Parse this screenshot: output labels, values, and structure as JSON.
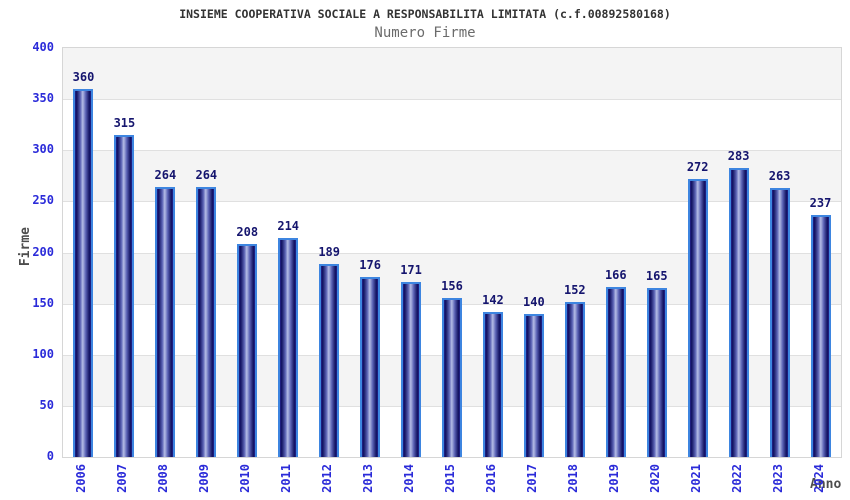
{
  "header": {
    "title": "INSIEME COOPERATIVA SOCIALE A RESPONSABILITA LIMITATA (c.f.00892580168)",
    "subtitle": "Numero Firme"
  },
  "chart_data": {
    "type": "bar",
    "title": "INSIEME COOPERATIVA SOCIALE A RESPONSABILITA LIMITATA (c.f.00892580168)",
    "subtitle": "Numero Firme",
    "xlabel": "Anno",
    "ylabel": "Firme",
    "categories": [
      "2006",
      "2007",
      "2008",
      "2009",
      "2010",
      "2011",
      "2012",
      "2013",
      "2014",
      "2015",
      "2016",
      "2017",
      "2018",
      "2019",
      "2020",
      "2021",
      "2022",
      "2023",
      "2024"
    ],
    "values": [
      360,
      315,
      264,
      264,
      208,
      214,
      189,
      176,
      171,
      156,
      142,
      140,
      152,
      166,
      165,
      272,
      283,
      263,
      237
    ],
    "ylim": [
      0,
      400
    ],
    "ytick_step": 50,
    "grid": "horizontal bands alternating",
    "legend": "none",
    "colors": {
      "bar_border": "#3d85e0",
      "bar_dark": "#10105e",
      "bar_light": "#b4bce6",
      "value_label": "#15156e",
      "axis_tick_label": "#2b2bd9",
      "axis_title": "#4d4d4d",
      "band_fill": "#f4f4f4",
      "gridline": "#e0e0e0",
      "title_color": "#333333",
      "subtitle_color": "#6b6b6b"
    }
  }
}
